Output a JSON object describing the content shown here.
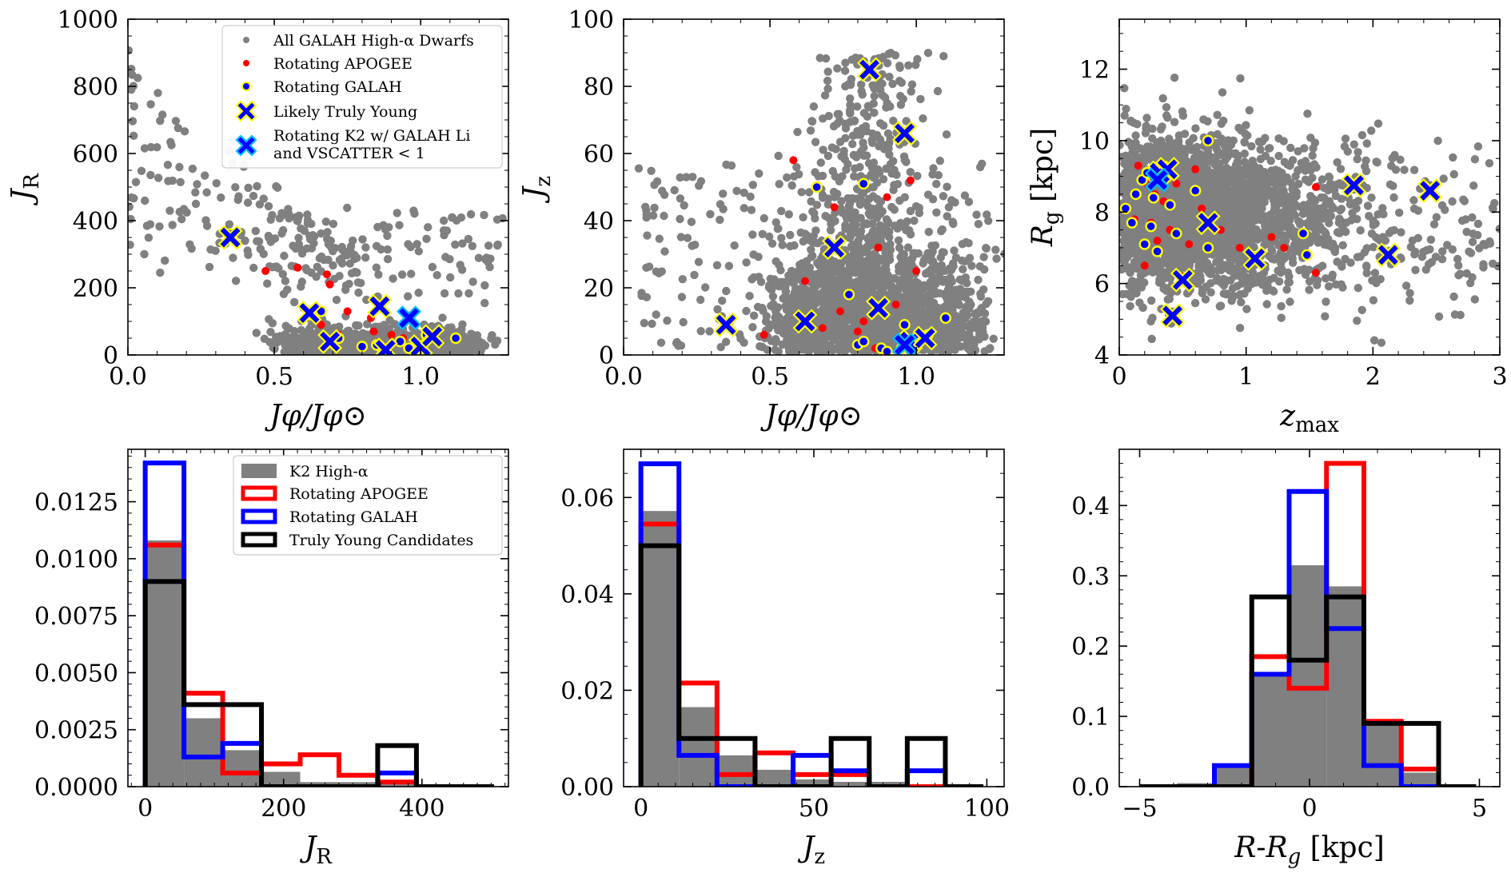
{
  "colors": {
    "all_dwarfs": "#808080",
    "apogee": "#ff0000",
    "galah_fill": "#0000ff",
    "galah_edge": "#ffff00",
    "young": "#0000ff",
    "k2_li": "#00bfff",
    "k2_hist": "#808080",
    "young_hist": "#000000"
  },
  "chart_data": [
    {
      "id": "jphi_jr",
      "type": "scatter",
      "xlabel": "Jφ/Jφ⊙",
      "ylabel": "J_R",
      "xlim": [
        0.0,
        1.3
      ],
      "ylim": [
        0,
        1000
      ],
      "xticks": [
        "0.0",
        "0.5",
        "1.0"
      ],
      "yticks": [
        "0",
        "200",
        "400",
        "600",
        "800",
        "1000"
      ],
      "legend": {
        "position": "upper-right",
        "entries": [
          "All GALAH High-α Dwarfs",
          "Rotating APOGEE",
          "Rotating GALAH",
          "Likely Truly Young",
          "Rotating K2 w/ GALAH Li",
          " and VSCATTER < 1"
        ]
      },
      "apogee": [
        [
          0.47,
          250
        ],
        [
          0.58,
          260
        ],
        [
          0.68,
          240
        ],
        [
          0.69,
          210
        ],
        [
          0.66,
          90
        ],
        [
          0.72,
          60
        ],
        [
          0.75,
          130
        ],
        [
          0.84,
          70
        ],
        [
          0.9,
          60
        ],
        [
          0.94,
          50
        ],
        [
          1.0,
          30
        ],
        [
          0.6,
          140
        ],
        [
          0.83,
          110
        ]
      ],
      "galah": [
        [
          0.35,
          360
        ],
        [
          0.62,
          120
        ],
        [
          0.66,
          130
        ],
        [
          0.72,
          50
        ],
        [
          0.8,
          25
        ],
        [
          0.87,
          15
        ],
        [
          0.93,
          40
        ],
        [
          1.02,
          60
        ],
        [
          1.12,
          50
        ],
        [
          0.96,
          20
        ],
        [
          0.85,
          30
        ]
      ],
      "young": [
        [
          0.35,
          350
        ],
        [
          0.62,
          125
        ],
        [
          0.69,
          40
        ],
        [
          0.86,
          145
        ],
        [
          0.88,
          15
        ],
        [
          1.0,
          25
        ],
        [
          1.04,
          55
        ]
      ],
      "k2_li": [
        [
          0.96,
          110
        ]
      ]
    },
    {
      "id": "jphi_jz",
      "type": "scatter",
      "xlabel": "Jφ/Jφ⊙",
      "ylabel": "J_z",
      "xlim": [
        0.0,
        1.3
      ],
      "ylim": [
        0,
        100
      ],
      "xticks": [
        "0.0",
        "0.5",
        "1.0"
      ],
      "yticks": [
        "0",
        "20",
        "40",
        "60",
        "80",
        "100"
      ],
      "apogee": [
        [
          0.58,
          58
        ],
        [
          0.72,
          44
        ],
        [
          0.9,
          47
        ],
        [
          0.87,
          32
        ],
        [
          0.48,
          6
        ],
        [
          0.62,
          22
        ],
        [
          0.74,
          13
        ],
        [
          0.82,
          10
        ],
        [
          0.86,
          2
        ],
        [
          1.0,
          25
        ],
        [
          0.93,
          15
        ],
        [
          0.8,
          7
        ],
        [
          0.98,
          52
        ],
        [
          0.68,
          8
        ]
      ],
      "galah": [
        [
          0.66,
          50
        ],
        [
          0.82,
          51
        ],
        [
          0.77,
          18
        ],
        [
          0.8,
          3
        ],
        [
          0.88,
          2
        ],
        [
          0.96,
          9
        ],
        [
          1.04,
          6
        ],
        [
          1.1,
          11
        ],
        [
          0.82,
          4
        ],
        [
          0.9,
          1
        ],
        [
          0.95,
          2
        ]
      ],
      "young": [
        [
          0.84,
          85
        ],
        [
          0.96,
          66
        ],
        [
          0.72,
          32
        ],
        [
          0.35,
          9
        ],
        [
          0.62,
          10
        ],
        [
          0.87,
          14
        ],
        [
          0.98,
          4
        ],
        [
          1.03,
          5
        ]
      ],
      "k2_li": [
        [
          0.96,
          3
        ]
      ]
    },
    {
      "id": "zmax_rg",
      "type": "scatter",
      "xlabel": "z_max",
      "ylabel": "R_g [kpc]",
      "xlim": [
        0,
        3
      ],
      "ylim": [
        4,
        13.4
      ],
      "xticks": [
        "0",
        "1",
        "2",
        "3"
      ],
      "yticks": [
        "4",
        "6",
        "8",
        "10",
        "12"
      ],
      "apogee": [
        [
          0.15,
          9.3
        ],
        [
          0.22,
          8.8
        ],
        [
          0.28,
          8.5
        ],
        [
          0.35,
          8.3
        ],
        [
          0.25,
          7.7
        ],
        [
          0.3,
          7.2
        ],
        [
          0.2,
          6.5
        ],
        [
          0.4,
          7.5
        ],
        [
          0.5,
          6.2
        ],
        [
          0.55,
          7.1
        ],
        [
          0.65,
          8.1
        ],
        [
          0.8,
          7.5
        ],
        [
          0.95,
          7.0
        ],
        [
          1.2,
          7.3
        ],
        [
          1.3,
          7.0
        ],
        [
          1.55,
          8.7
        ],
        [
          1.55,
          6.3
        ],
        [
          0.12,
          7.8
        ],
        [
          0.45,
          8.8
        ],
        [
          0.6,
          9.2
        ]
      ],
      "galah": [
        [
          0.05,
          8.1
        ],
        [
          0.1,
          7.7
        ],
        [
          0.13,
          8.5
        ],
        [
          0.18,
          8.9
        ],
        [
          0.22,
          9.1
        ],
        [
          0.27,
          8.4
        ],
        [
          0.2,
          7.1
        ],
        [
          0.3,
          6.9
        ],
        [
          0.4,
          8.2
        ],
        [
          0.45,
          7.4
        ],
        [
          0.6,
          8.6
        ],
        [
          0.7,
          10.0
        ],
        [
          0.7,
          7.0
        ],
        [
          1.45,
          7.4
        ],
        [
          1.48,
          6.8
        ],
        [
          0.25,
          7.6
        ]
      ],
      "young": [
        [
          0.32,
          9.1
        ],
        [
          0.38,
          9.2
        ],
        [
          0.42,
          5.1
        ],
        [
          0.5,
          6.1
        ],
        [
          0.7,
          7.7
        ],
        [
          1.07,
          6.7
        ],
        [
          1.85,
          8.75
        ],
        [
          2.12,
          6.8
        ],
        [
          2.45,
          8.6
        ]
      ],
      "k2_li": [
        [
          0.3,
          8.9
        ]
      ]
    },
    {
      "id": "hist_jr",
      "type": "bar",
      "xlabel": "J_R",
      "xlim": [
        -25,
        525
      ],
      "ylim": [
        0,
        0.0148
      ],
      "xticks": [
        0,
        200,
        400
      ],
      "yticks": [
        "0.0000",
        "0.0025",
        "0.0050",
        "0.0075",
        "0.0100",
        "0.0125"
      ],
      "legend": {
        "position": "upper-right",
        "entries": [
          "K2 High-α",
          "Rotating APOGEE",
          "Rotating GALAH",
          "Truly Young Candidates"
        ]
      },
      "bin_edges": [
        0,
        56,
        112,
        168,
        224,
        280,
        336,
        392,
        448,
        504
      ],
      "series": [
        {
          "name": "K2 High-α",
          "values": [
            0.0108,
            0.003,
            0.0016,
            0.00065,
            0.0002,
            0.0002,
            0.0001,
            5e-05,
            0.0
          ]
        },
        {
          "name": "Rotating APOGEE",
          "values": [
            0.0106,
            0.0041,
            0.0006,
            0.001,
            0.0014,
            0.0005,
            0.0002,
            0.0,
            0.0
          ]
        },
        {
          "name": "Rotating GALAH",
          "values": [
            0.0142,
            0.0013,
            0.0019,
            0.0,
            0.0,
            0.0,
            0.0006,
            0.0,
            0.0
          ]
        },
        {
          "name": "Truly Young Candidates",
          "values": [
            0.009,
            0.0036,
            0.0036,
            0.0,
            0.0,
            0.0,
            0.0018,
            0.0,
            0.0
          ]
        }
      ]
    },
    {
      "id": "hist_jz",
      "type": "bar",
      "xlabel": "J_z",
      "xlim": [
        -5,
        105
      ],
      "ylim": [
        0,
        0.07
      ],
      "xticks": [
        0,
        50,
        100
      ],
      "yticks": [
        "0.00",
        "0.02",
        "0.04",
        "0.06"
      ],
      "bin_edges": [
        0,
        11,
        22,
        33,
        44,
        55,
        66,
        77,
        88,
        99
      ],
      "series": [
        {
          "name": "K2 High-α",
          "values": [
            0.0572,
            0.0165,
            0.0065,
            0.0035,
            0.0015,
            0.001,
            0.001,
            0.0003,
            0.0
          ]
        },
        {
          "name": "Rotating APOGEE",
          "values": [
            0.0545,
            0.0215,
            0.0025,
            0.007,
            0.0025,
            0.0025,
            0.0,
            0.0,
            0.0
          ]
        },
        {
          "name": "Rotating GALAH",
          "values": [
            0.067,
            0.0065,
            0.0,
            0.0,
            0.0065,
            0.0033,
            0.0,
            0.0033,
            0.0
          ]
        },
        {
          "name": "Truly Young Candidates",
          "values": [
            0.05,
            0.01,
            0.01,
            0.0,
            0.0,
            0.01,
            0.0,
            0.01,
            0.0
          ]
        }
      ]
    },
    {
      "id": "hist_rrg",
      "type": "bar",
      "xlabel": "R-R_g [kpc]",
      "xlim": [
        -5.6,
        5.6
      ],
      "ylim": [
        0,
        0.48
      ],
      "xticks": [
        -5,
        0,
        5
      ],
      "yticks": [
        "0.0",
        "0.1",
        "0.2",
        "0.3",
        "0.4"
      ],
      "bin_edges": [
        -5,
        -3.9,
        -2.8,
        -1.7,
        -0.6,
        0.5,
        1.6,
        2.7,
        3.8,
        4.9
      ],
      "series": [
        {
          "name": "K2 High-α",
          "values": [
            0.0,
            0.005,
            0.03,
            0.16,
            0.315,
            0.285,
            0.09,
            0.02,
            0.0
          ]
        },
        {
          "name": "Rotating APOGEE",
          "values": [
            0.0,
            0.0,
            0.0,
            0.185,
            0.14,
            0.46,
            0.093,
            0.025,
            0.0
          ]
        },
        {
          "name": "Rotating GALAH",
          "values": [
            0.0,
            0.0,
            0.03,
            0.16,
            0.42,
            0.225,
            0.03,
            0.0,
            0.0
          ]
        },
        {
          "name": "Truly Young Candidates",
          "values": [
            0.0,
            0.0,
            0.0,
            0.27,
            0.18,
            0.27,
            0.09,
            0.09,
            0.0
          ]
        }
      ]
    }
  ]
}
